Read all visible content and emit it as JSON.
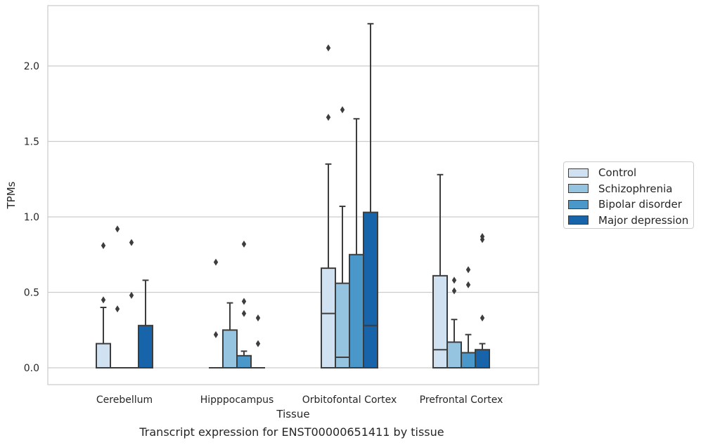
{
  "chart_data": {
    "type": "box",
    "title": "",
    "caption": "Transcript expression for ENST00000651411 by tissue",
    "xlabel": "Tissue",
    "ylabel": "TPMs",
    "ylim": [
      -0.11,
      2.4
    ],
    "yticks": [
      "0.0",
      "0.5",
      "1.0",
      "1.5",
      "2.0"
    ],
    "grid": true,
    "legend_position": "right",
    "categories": [
      "Cerebellum",
      "Hipppocampus",
      "Orbitofontal Cortex",
      "Prefrontal Cortex"
    ],
    "series": [
      {
        "name": "Control",
        "color": "#d0e1f2",
        "boxes": [
          {
            "q1": 0.0,
            "median": 0.0,
            "q3": 0.16,
            "whisker_low": 0.0,
            "whisker_high": 0.4,
            "outliers": [
              0.45,
              0.81
            ]
          },
          {
            "q1": 0.0,
            "median": 0.0,
            "q3": 0.0,
            "whisker_low": 0.0,
            "whisker_high": 0.0,
            "outliers": [
              0.22,
              0.7
            ]
          },
          {
            "q1": 0.0,
            "median": 0.36,
            "q3": 0.66,
            "whisker_low": 0.0,
            "whisker_high": 1.35,
            "outliers": [
              1.66,
              2.12
            ]
          },
          {
            "q1": 0.0,
            "median": 0.12,
            "q3": 0.61,
            "whisker_low": 0.0,
            "whisker_high": 1.28,
            "outliers": []
          }
        ]
      },
      {
        "name": "Schizophrenia",
        "color": "#94c4df",
        "boxes": [
          {
            "q1": 0.0,
            "median": 0.0,
            "q3": 0.0,
            "whisker_low": 0.0,
            "whisker_high": 0.0,
            "outliers": [
              0.39,
              0.92
            ]
          },
          {
            "q1": 0.0,
            "median": 0.0,
            "q3": 0.25,
            "whisker_low": 0.0,
            "whisker_high": 0.43,
            "outliers": []
          },
          {
            "q1": 0.0,
            "median": 0.07,
            "q3": 0.56,
            "whisker_low": 0.0,
            "whisker_high": 1.07,
            "outliers": [
              1.71
            ]
          },
          {
            "q1": 0.0,
            "median": 0.0,
            "q3": 0.17,
            "whisker_low": 0.0,
            "whisker_high": 0.32,
            "outliers": [
              0.51,
              0.58
            ]
          }
        ]
      },
      {
        "name": "Bipolar disorder",
        "color": "#4a98c9",
        "boxes": [
          {
            "q1": 0.0,
            "median": 0.0,
            "q3": 0.0,
            "whisker_low": 0.0,
            "whisker_high": 0.0,
            "outliers": [
              0.48,
              0.83
            ]
          },
          {
            "q1": 0.0,
            "median": 0.0,
            "q3": 0.08,
            "whisker_low": 0.0,
            "whisker_high": 0.11,
            "outliers": [
              0.36,
              0.44,
              0.82
            ]
          },
          {
            "q1": 0.0,
            "median": 0.0,
            "q3": 0.75,
            "whisker_low": 0.0,
            "whisker_high": 1.65,
            "outliers": []
          },
          {
            "q1": 0.0,
            "median": 0.0,
            "q3": 0.1,
            "whisker_low": 0.0,
            "whisker_high": 0.22,
            "outliers": [
              0.55,
              0.65
            ]
          }
        ]
      },
      {
        "name": "Major depression",
        "color": "#1764ab",
        "boxes": [
          {
            "q1": 0.0,
            "median": 0.0,
            "q3": 0.28,
            "whisker_low": 0.0,
            "whisker_high": 0.58,
            "outliers": []
          },
          {
            "q1": 0.0,
            "median": 0.0,
            "q3": 0.0,
            "whisker_low": 0.0,
            "whisker_high": 0.0,
            "outliers": [
              0.16,
              0.33
            ]
          },
          {
            "q1": 0.0,
            "median": 0.28,
            "q3": 1.03,
            "whisker_low": 0.0,
            "whisker_high": 2.28,
            "outliers": []
          },
          {
            "q1": 0.0,
            "median": 0.0,
            "q3": 0.12,
            "whisker_low": 0.0,
            "whisker_high": 0.16,
            "outliers": [
              0.33,
              0.85,
              0.87
            ]
          }
        ]
      }
    ]
  }
}
